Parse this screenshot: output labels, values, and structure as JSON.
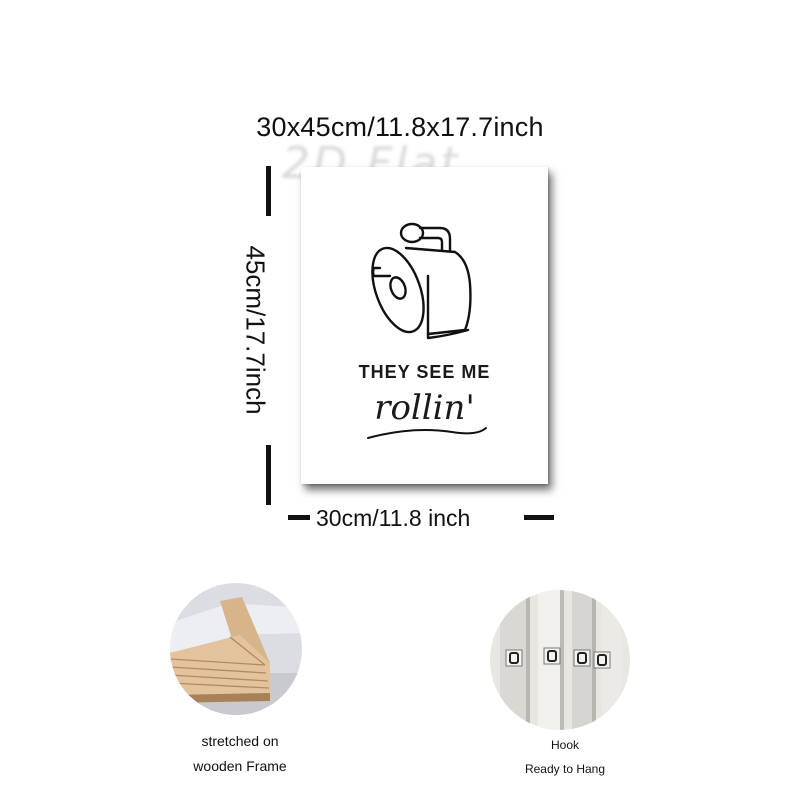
{
  "dimensions": {
    "title": "30x45cm/11.8x17.7inch",
    "height_label": "45cm/17.7inch",
    "width_label": "30cm/11.8 inch"
  },
  "watermark": "2D Flat",
  "artwork": {
    "line1": "THEY SEE ME",
    "line2": "rollin'",
    "icon": "toilet-paper-roll-icon"
  },
  "features": [
    {
      "caption_line1": "stretched on",
      "caption_line2": "wooden Frame",
      "image": "wooden-frame-corner"
    },
    {
      "caption_line1": "Hook",
      "caption_line2": "Ready to Hang",
      "image": "hanging-hooks"
    }
  ]
}
